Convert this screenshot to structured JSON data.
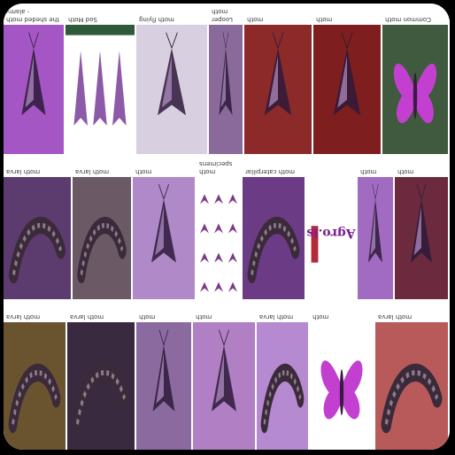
{
  "grid": {
    "rows": [
      [
        {
          "caption": "the sheded moth - alamy",
          "bg": "#a456c4",
          "type": "moth"
        },
        {
          "caption": "Sod Moth",
          "bg": "#ffffff",
          "type": "three-moths"
        },
        {
          "caption": "moth flying",
          "bg": "#d8cfe0",
          "type": "moth"
        },
        {
          "caption": "Looper moth",
          "bg": "#8a6a9a",
          "type": "moth"
        },
        {
          "caption": "moth",
          "bg": "#8c2a2a",
          "type": "moth"
        },
        {
          "caption": "moth",
          "bg": "#7e1e1e",
          "type": "moth"
        },
        {
          "caption": "Common moth",
          "bg": "#3f5a3f",
          "type": "butterfly"
        }
      ],
      [
        {
          "caption": "moth larva",
          "bg": "#5c3b6e",
          "type": "caterpillar"
        },
        {
          "caption": "moth larva",
          "bg": "#6b5a66",
          "type": "caterpillar"
        },
        {
          "caption": "moth",
          "bg": "#b089c9",
          "type": "moth"
        },
        {
          "caption": "moth specimens",
          "bg": "#ffffff",
          "type": "specimens"
        },
        {
          "caption": "moth caterpillar",
          "bg": "#6b3b86",
          "type": "caterpillar"
        },
        {
          "caption": "",
          "bg": "#ffffff",
          "type": "logo",
          "logo_text": "Agro.is"
        },
        {
          "caption": "moth",
          "bg": "#a26bc2",
          "type": "moth"
        },
        {
          "caption": "moth",
          "bg": "#6b2a3e",
          "type": "moth"
        }
      ],
      [
        {
          "caption": "moth larva",
          "bg": "#6a5430",
          "type": "caterpillar"
        },
        {
          "caption": "moth larva",
          "bg": "#3a2a40",
          "type": "caterpillar"
        },
        {
          "caption": "moth",
          "bg": "#8b6aa0",
          "type": "moth"
        },
        {
          "caption": "moth",
          "bg": "#b07fc4",
          "type": "moth"
        },
        {
          "caption": "moth larva",
          "bg": "#b58ad0",
          "type": "caterpillar"
        },
        {
          "caption": "moth",
          "bg": "#ffffff",
          "type": "butterfly"
        },
        {
          "caption": "moth larva",
          "bg": "#b85a5a",
          "type": "caterpillar"
        }
      ]
    ]
  }
}
